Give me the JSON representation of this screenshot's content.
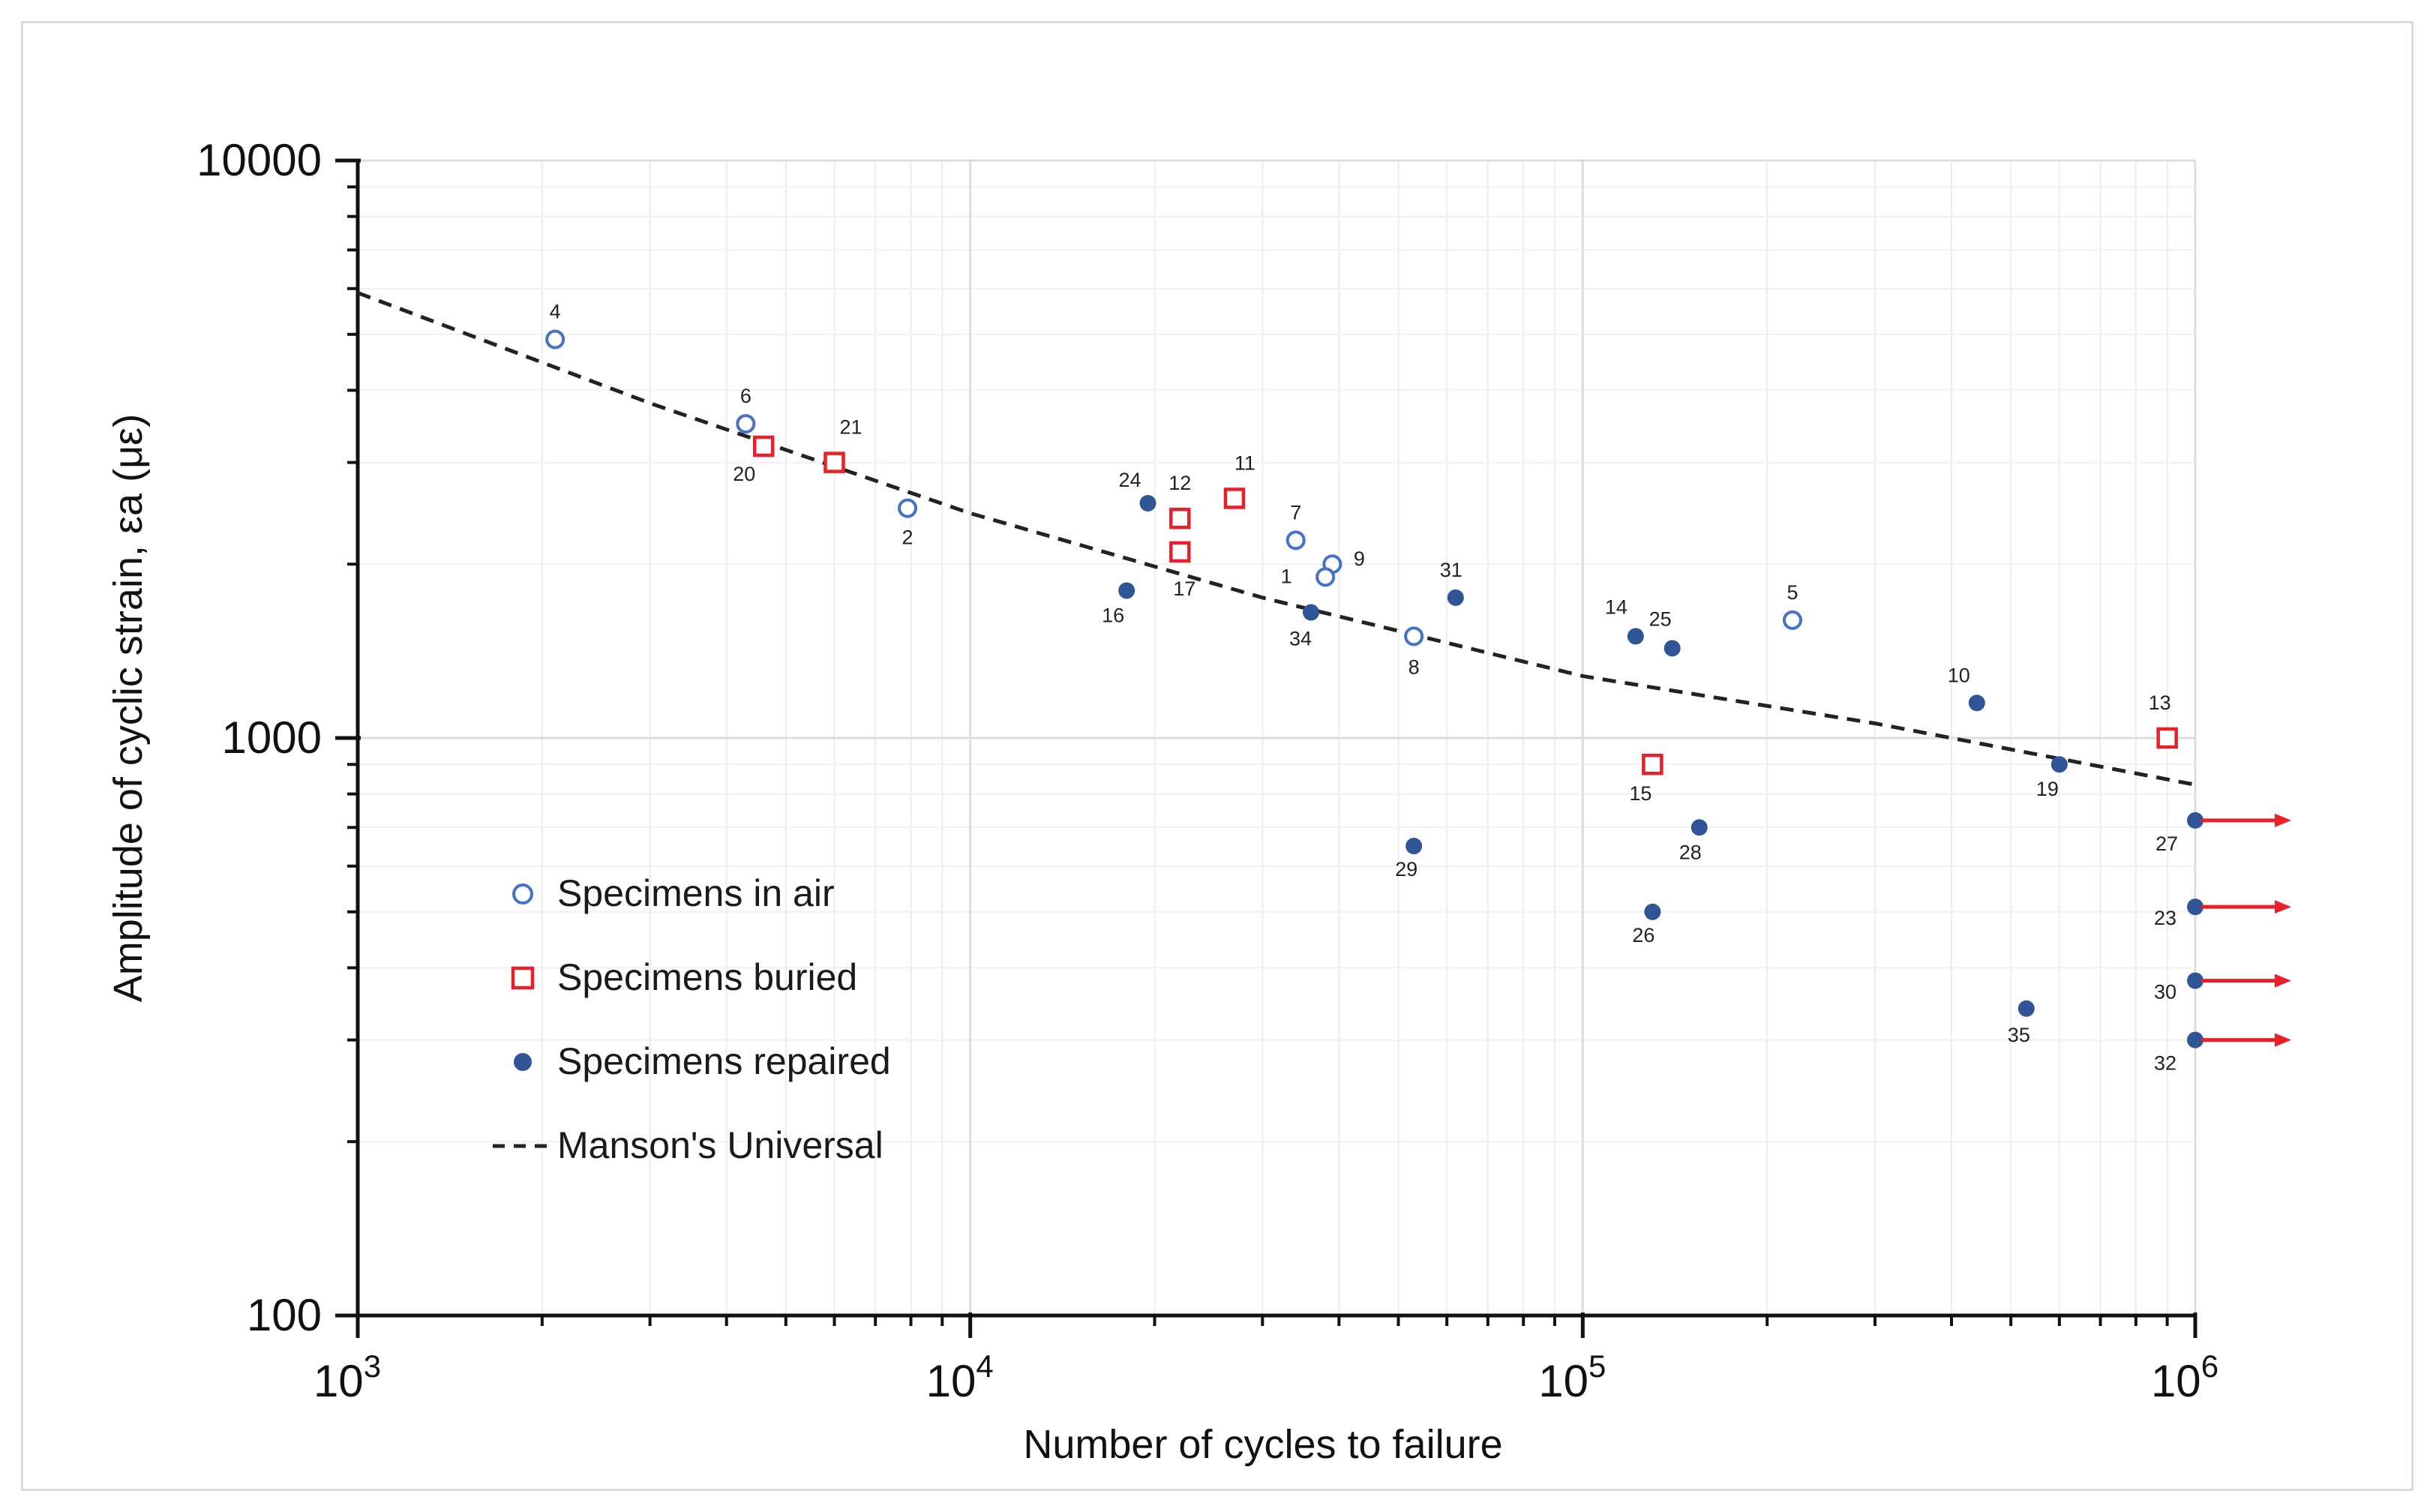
{
  "chart_data": {
    "type": "scatter",
    "xlabel": "Number of cycles to failure",
    "ylabel": "Amplitude of cyclic strain, εa (με)",
    "xscale": "log",
    "yscale": "log",
    "xlim": [
      1000,
      1000000
    ],
    "ylim": [
      100,
      10000
    ],
    "grid": true,
    "legend_position": "bottom-left",
    "x_ticks": [
      {
        "value": 1000,
        "base": "10",
        "exp": "3"
      },
      {
        "value": 10000,
        "base": "10",
        "exp": "4"
      },
      {
        "value": 100000,
        "base": "10",
        "exp": "5"
      },
      {
        "value": 1000000,
        "base": "10",
        "exp": "6"
      }
    ],
    "y_ticks": [
      {
        "value": 100,
        "label": "100"
      },
      {
        "value": 1000,
        "label": "1000"
      },
      {
        "value": 10000,
        "label": "10000"
      }
    ],
    "colors": {
      "air": "#4472c4",
      "buried": "#e8202a",
      "repaired": "#2f5597",
      "curve": "#222222",
      "arrow": "#e8202a"
    },
    "series": [
      {
        "name": "Specimens in air",
        "marker": "open-circle",
        "color": "#4472c4",
        "points": [
          {
            "label": "4",
            "x": 2100,
            "y": 4900
          },
          {
            "label": "6",
            "x": 4300,
            "y": 3500
          },
          {
            "label": "2",
            "x": 7900,
            "y": 2500
          },
          {
            "label": "7",
            "x": 34000,
            "y": 2200
          },
          {
            "label": "9",
            "x": 39000,
            "y": 2000
          },
          {
            "label": "1",
            "x": 38000,
            "y": 1900
          },
          {
            "label": "8",
            "x": 53000,
            "y": 1500
          },
          {
            "label": "5",
            "x": 220000,
            "y": 1600
          }
        ]
      },
      {
        "name": "Specimens buried",
        "marker": "open-square",
        "color": "#e8202a",
        "points": [
          {
            "label": "20",
            "x": 4600,
            "y": 3200
          },
          {
            "label": "21",
            "x": 6000,
            "y": 3000
          },
          {
            "label": "12",
            "x": 22000,
            "y": 2400
          },
          {
            "label": "17",
            "x": 22000,
            "y": 2100
          },
          {
            "label": "11",
            "x": 27000,
            "y": 2600
          },
          {
            "label": "15",
            "x": 130000,
            "y": 900
          },
          {
            "label": "13",
            "x": 900000,
            "y": 1000
          }
        ]
      },
      {
        "name": "Specimens repaired",
        "marker": "filled-circle",
        "color": "#2f5597",
        "points": [
          {
            "label": "24",
            "x": 19500,
            "y": 2550
          },
          {
            "label": "16",
            "x": 18000,
            "y": 1800
          },
          {
            "label": "34",
            "x": 36000,
            "y": 1650
          },
          {
            "label": "31",
            "x": 62000,
            "y": 1750
          },
          {
            "label": "29",
            "x": 53000,
            "y": 650
          },
          {
            "label": "14",
            "x": 122000,
            "y": 1500
          },
          {
            "label": "25",
            "x": 140000,
            "y": 1430
          },
          {
            "label": "28",
            "x": 155000,
            "y": 700
          },
          {
            "label": "26",
            "x": 130000,
            "y": 500
          },
          {
            "label": "10",
            "x": 440000,
            "y": 1150
          },
          {
            "label": "19",
            "x": 600000,
            "y": 900
          },
          {
            "label": "35",
            "x": 530000,
            "y": 340
          },
          {
            "label": "27",
            "x": 1000000,
            "y": 720,
            "runout": true
          },
          {
            "label": "23",
            "x": 1000000,
            "y": 510,
            "runout": true
          },
          {
            "label": "30",
            "x": 1000000,
            "y": 380,
            "runout": true
          },
          {
            "label": "32",
            "x": 1000000,
            "y": 300,
            "runout": true
          }
        ]
      },
      {
        "name": "Manson's Universal",
        "marker": "dashed-line",
        "color": "#222222",
        "points": [
          {
            "x": 1000,
            "y": 5900
          },
          {
            "x": 3000,
            "y": 3800
          },
          {
            "x": 10000,
            "y": 2450
          },
          {
            "x": 30000,
            "y": 1750
          },
          {
            "x": 100000,
            "y": 1280
          },
          {
            "x": 300000,
            "y": 1060
          },
          {
            "x": 1000000,
            "y": 830
          }
        ]
      }
    ]
  }
}
